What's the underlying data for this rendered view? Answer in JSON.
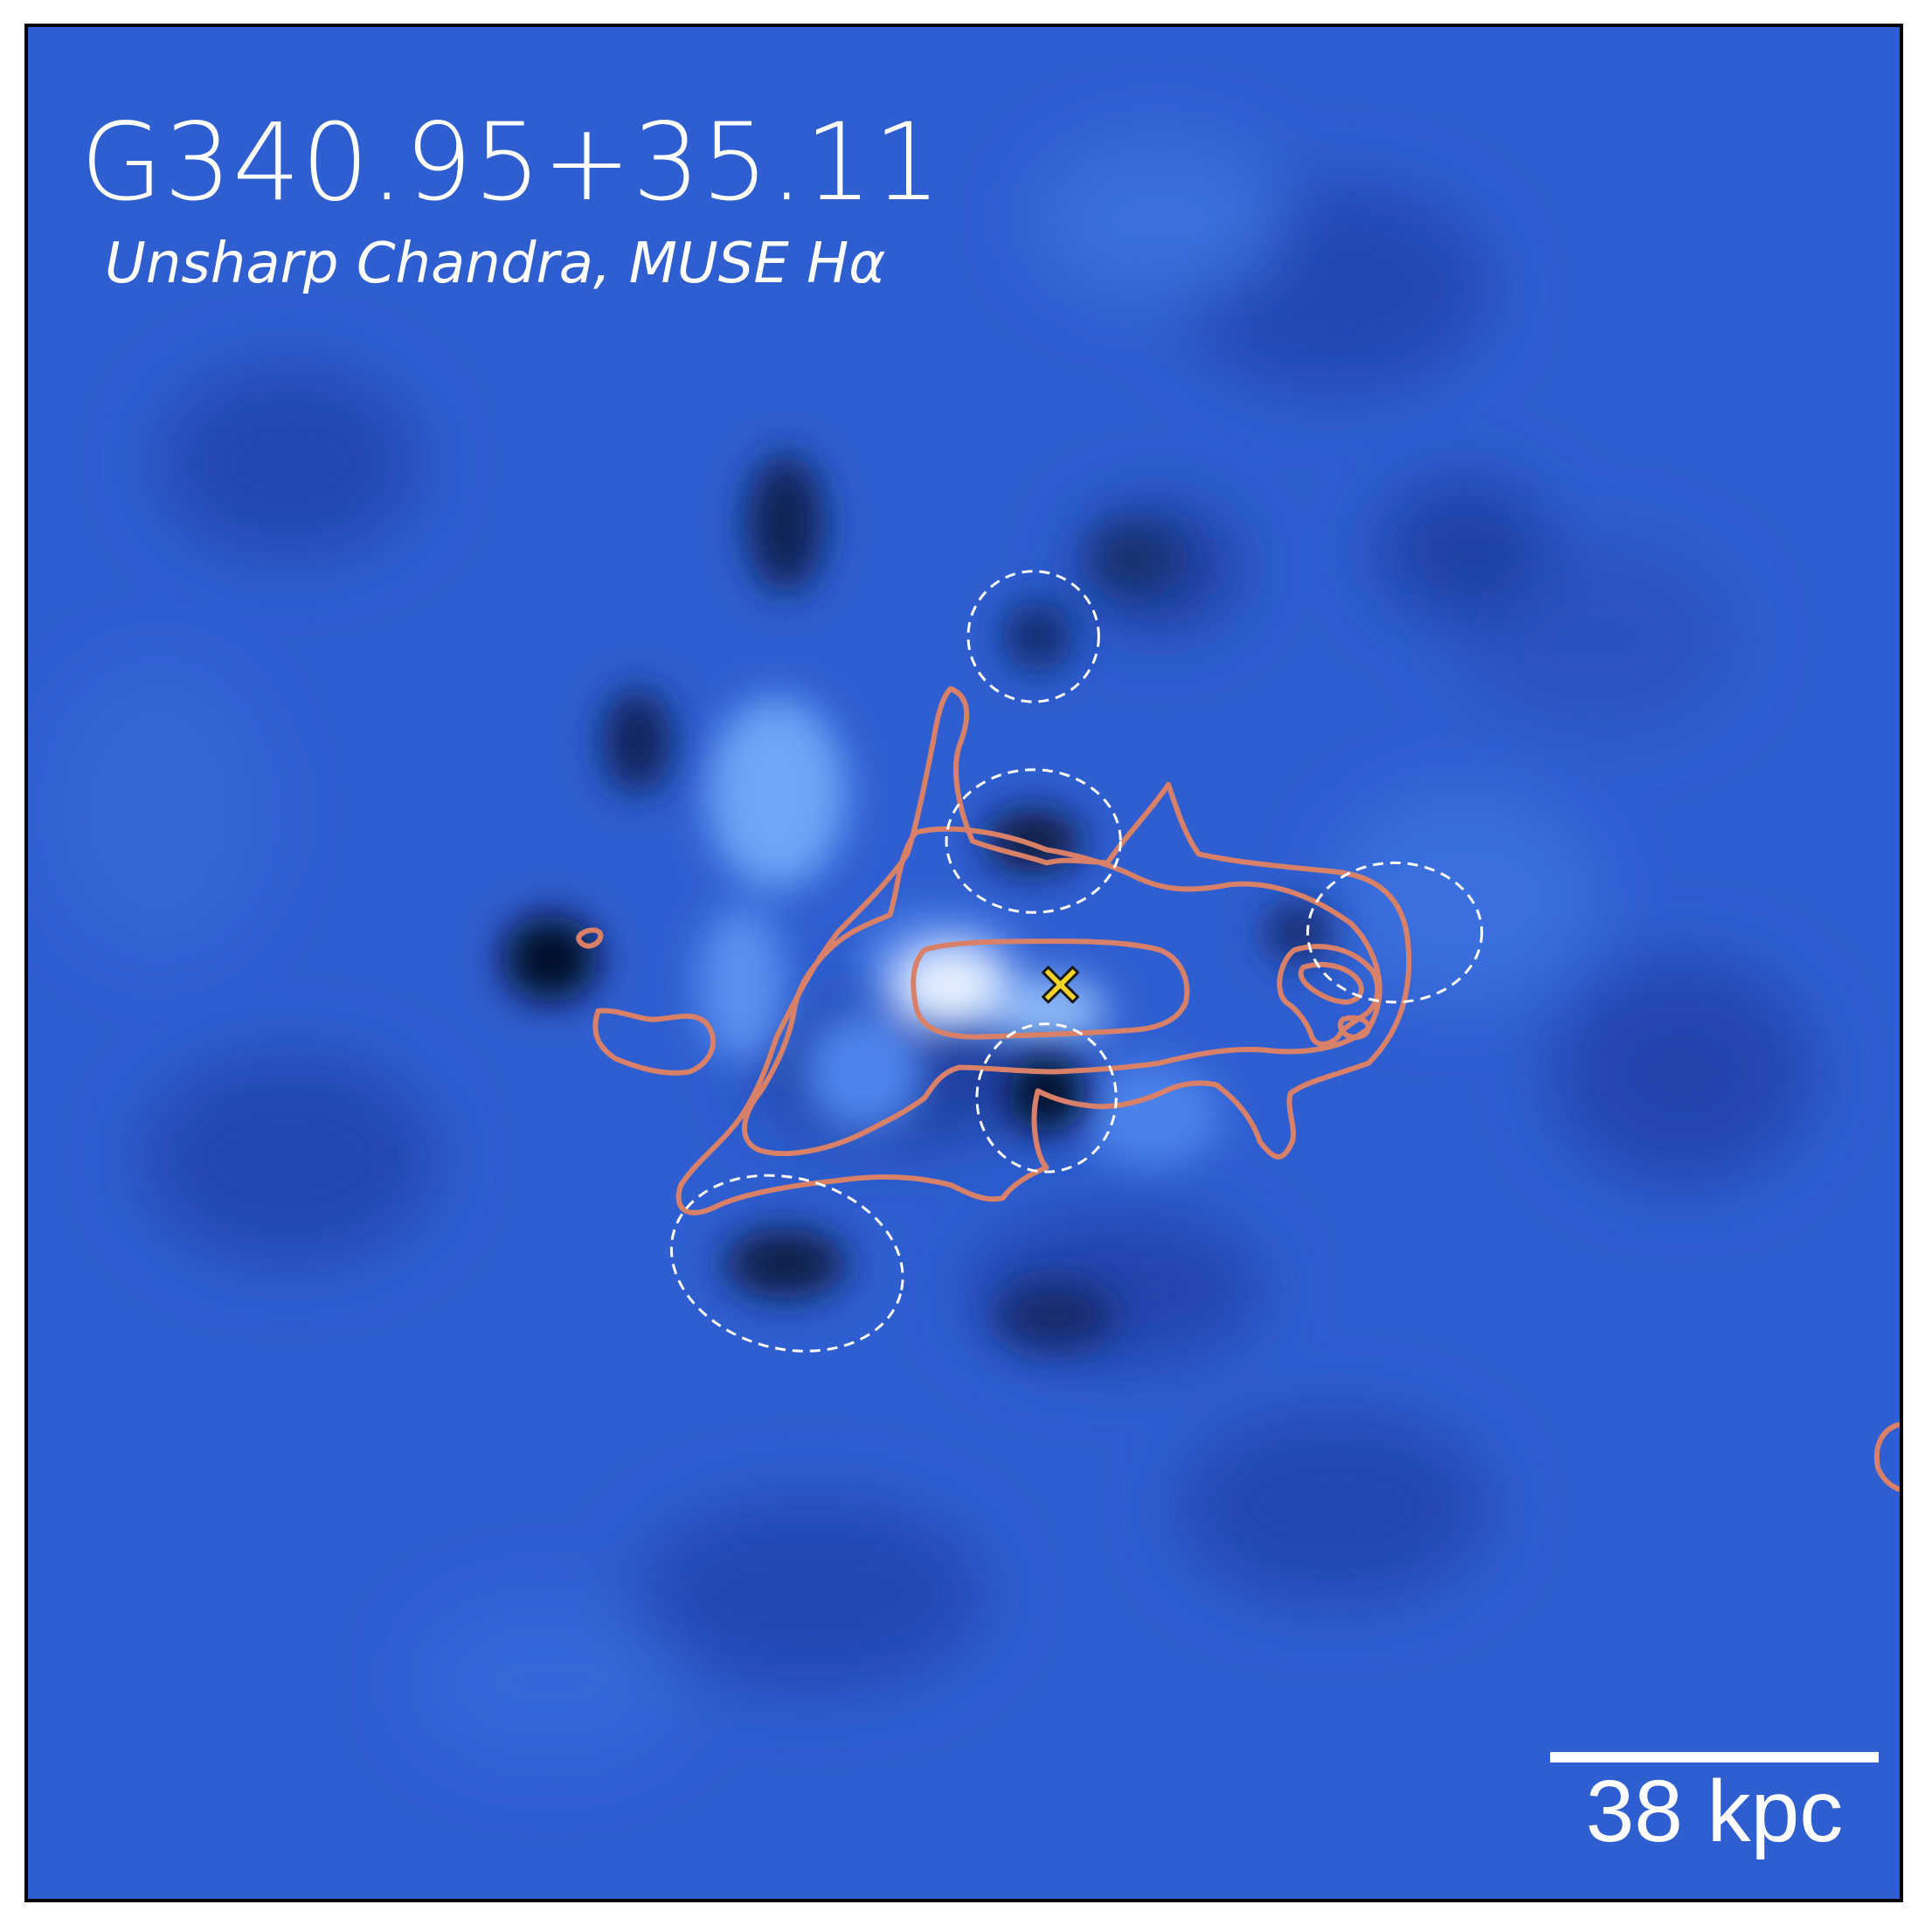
{
  "title": "G340.95+35.11",
  "subtitle": "Unsharp Chandra, MUSE Hα",
  "scale_bar": {
    "label": "38 kpc"
  },
  "colors": {
    "background_blue": "#2f5ed0",
    "bright_blue": "#cfe4ff",
    "dark_blue": "#061233",
    "contour": "#d98068",
    "marker": "#f5d327",
    "dashed_regions": "#ffffff"
  },
  "markers": [
    {
      "type": "x",
      "name": "center-marker"
    }
  ]
}
